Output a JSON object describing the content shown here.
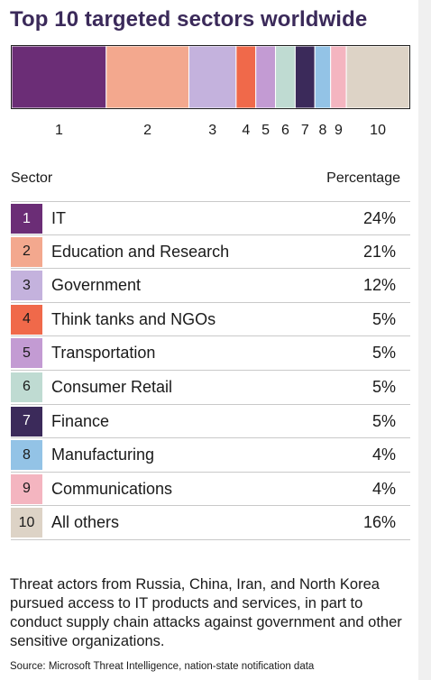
{
  "title": "Top 10 targeted sectors worldwide",
  "colors": [
    "#6b2d76",
    "#f3a88e",
    "#c4b2dd",
    "#f0694a",
    "#c39bd3",
    "#bfdbd2",
    "#3b2a5a",
    "#93c3e6",
    "#f4b5c0",
    "#ddd3c6"
  ],
  "table": {
    "header_sector": "Sector",
    "header_percentage": "Percentage",
    "rows": [
      {
        "rank": "1",
        "sector": "IT",
        "percentage": "24%"
      },
      {
        "rank": "2",
        "sector": "Education and Research",
        "percentage": "21%"
      },
      {
        "rank": "3",
        "sector": "Government",
        "percentage": "12%"
      },
      {
        "rank": "4",
        "sector": "Think tanks and NGOs",
        "percentage": "5%"
      },
      {
        "rank": "5",
        "sector": "Transportation",
        "percentage": "5%"
      },
      {
        "rank": "6",
        "sector": "Consumer Retail",
        "percentage": "5%"
      },
      {
        "rank": "7",
        "sector": "Finance",
        "percentage": "5%"
      },
      {
        "rank": "8",
        "sector": "Manufacturing",
        "percentage": "4%"
      },
      {
        "rank": "9",
        "sector": "Communications",
        "percentage": "4%"
      },
      {
        "rank": "10",
        "sector": "All others",
        "percentage": "16%"
      }
    ]
  },
  "note": "Threat actors from Russia, China, Iran, and North Korea pursued access to IT products and services, in part to conduct supply chain attacks against government and other sensitive organizations.",
  "source": "Source: Microsoft Threat Intelligence, nation-state notification data",
  "chart_data": {
    "type": "bar",
    "orientation": "horizontal-stacked-100",
    "title": "Top 10 targeted sectors worldwide",
    "categories": [
      "1",
      "2",
      "3",
      "4",
      "5",
      "6",
      "7",
      "8",
      "9",
      "10"
    ],
    "series": [
      {
        "values": [
          24,
          21,
          12,
          5,
          5,
          5,
          5,
          4,
          4,
          16
        ]
      }
    ],
    "xlabel": "",
    "ylabel": "",
    "ylim": [
      0,
      100
    ],
    "grid": false,
    "legend": "none"
  }
}
